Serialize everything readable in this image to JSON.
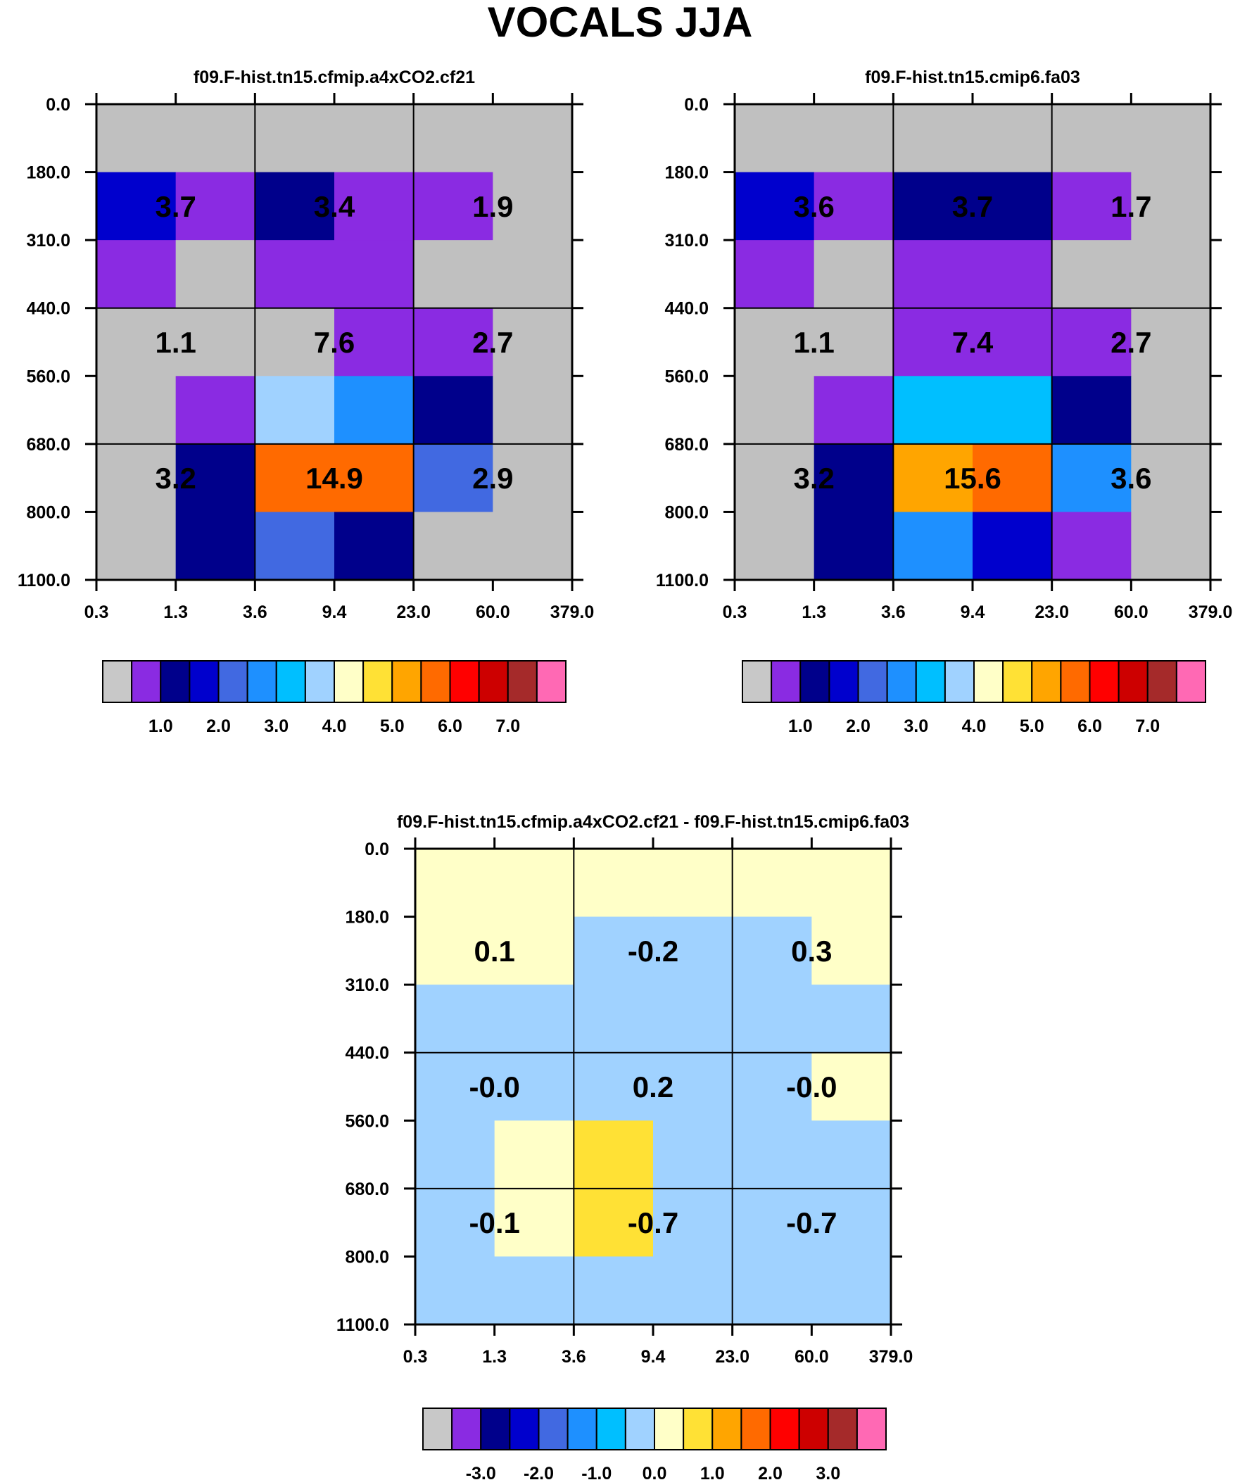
{
  "title": "VOCALS JJA",
  "chart_data": [
    {
      "type": "heatmap",
      "title": "f09.F-hist.tn15.cfmip.a4xCO2.cf21",
      "x_tick_labels": [
        "0.3",
        "1.3",
        "3.6",
        "9.4",
        "23.0",
        "60.0",
        "379.0"
      ],
      "y_tick_labels": [
        "0.0",
        "180.0",
        "310.0",
        "440.0",
        "560.0",
        "680.0",
        "800.0",
        "1100.0"
      ],
      "cell_colors": [
        [
          "#c0c0c0",
          "#c0c0c0",
          "#c0c0c0",
          "#c0c0c0",
          "#c0c0c0",
          "#c0c0c0"
        ],
        [
          "#0000cd",
          "#8a2be2",
          "#00008b",
          "#8a2be2",
          "#8a2be2",
          "#c0c0c0"
        ],
        [
          "#8a2be2",
          "#c0c0c0",
          "#8a2be2",
          "#8a2be2",
          "#c0c0c0",
          "#c0c0c0"
        ],
        [
          "#c0c0c0",
          "#c0c0c0",
          "#c0c0c0",
          "#8a2be2",
          "#8a2be2",
          "#c0c0c0"
        ],
        [
          "#c0c0c0",
          "#8a2be2",
          "#a0d2ff",
          "#1e90ff",
          "#00008b",
          "#c0c0c0"
        ],
        [
          "#c0c0c0",
          "#00008b",
          "#ff6a00",
          "#ff6a00",
          "#4169e1",
          "#c0c0c0"
        ],
        [
          "#c0c0c0",
          "#00008b",
          "#4169e1",
          "#00008b",
          "#c0c0c0",
          "#c0c0c0"
        ]
      ],
      "block_values": [
        [
          "3.7",
          "3.4",
          "1.9"
        ],
        [
          "1.1",
          "7.6",
          "2.7"
        ],
        [
          "3.2",
          "14.9",
          "2.9"
        ]
      ],
      "colorbar": {
        "colors": [
          "#c8c8c8",
          "#8a2be2",
          "#00008b",
          "#0000cd",
          "#4169e1",
          "#1e90ff",
          "#00bfff",
          "#a0d2ff",
          "#ffffc8",
          "#ffe135",
          "#ffa500",
          "#ff6a00",
          "#ff0000",
          "#cd0000",
          "#a52a2a",
          "#ff69b4"
        ],
        "labels": [
          "1.0",
          "2.0",
          "3.0",
          "4.0",
          "5.0",
          "6.0",
          "7.0"
        ]
      }
    },
    {
      "type": "heatmap",
      "title": "f09.F-hist.tn15.cmip6.fa03",
      "x_tick_labels": [
        "0.3",
        "1.3",
        "3.6",
        "9.4",
        "23.0",
        "60.0",
        "379.0"
      ],
      "y_tick_labels": [
        "0.0",
        "180.0",
        "310.0",
        "440.0",
        "560.0",
        "680.0",
        "800.0",
        "1100.0"
      ],
      "cell_colors": [
        [
          "#c0c0c0",
          "#c0c0c0",
          "#c0c0c0",
          "#c0c0c0",
          "#c0c0c0",
          "#c0c0c0"
        ],
        [
          "#0000cd",
          "#8a2be2",
          "#00008b",
          "#00008b",
          "#8a2be2",
          "#c0c0c0"
        ],
        [
          "#8a2be2",
          "#c0c0c0",
          "#8a2be2",
          "#8a2be2",
          "#c0c0c0",
          "#c0c0c0"
        ],
        [
          "#c0c0c0",
          "#c0c0c0",
          "#8a2be2",
          "#8a2be2",
          "#8a2be2",
          "#c0c0c0"
        ],
        [
          "#c0c0c0",
          "#8a2be2",
          "#00bfff",
          "#00bfff",
          "#00008b",
          "#c0c0c0"
        ],
        [
          "#c0c0c0",
          "#00008b",
          "#ffa500",
          "#ff6a00",
          "#1e90ff",
          "#c0c0c0"
        ],
        [
          "#c0c0c0",
          "#00008b",
          "#1e90ff",
          "#0000cd",
          "#8a2be2",
          "#c0c0c0"
        ]
      ],
      "block_values": [
        [
          "3.6",
          "3.7",
          "1.7"
        ],
        [
          "1.1",
          "7.4",
          "2.7"
        ],
        [
          "3.2",
          "15.6",
          "3.6"
        ]
      ],
      "colorbar": {
        "colors": [
          "#c8c8c8",
          "#8a2be2",
          "#00008b",
          "#0000cd",
          "#4169e1",
          "#1e90ff",
          "#00bfff",
          "#a0d2ff",
          "#ffffc8",
          "#ffe135",
          "#ffa500",
          "#ff6a00",
          "#ff0000",
          "#cd0000",
          "#a52a2a",
          "#ff69b4"
        ],
        "labels": [
          "1.0",
          "2.0",
          "3.0",
          "4.0",
          "5.0",
          "6.0",
          "7.0"
        ]
      }
    },
    {
      "type": "heatmap",
      "title": "f09.F-hist.tn15.cfmip.a4xCO2.cf21 - f09.F-hist.tn15.cmip6.fa03",
      "x_tick_labels": [
        "0.3",
        "1.3",
        "3.6",
        "9.4",
        "23.0",
        "60.0",
        "379.0"
      ],
      "y_tick_labels": [
        "0.0",
        "180.0",
        "310.0",
        "440.0",
        "560.0",
        "680.0",
        "800.0",
        "1100.0"
      ],
      "cell_colors": [
        [
          "#ffffc8",
          "#ffffc8",
          "#ffffc8",
          "#ffffc8",
          "#ffffc8",
          "#ffffc8"
        ],
        [
          "#ffffc8",
          "#ffffc8",
          "#a0d2ff",
          "#a0d2ff",
          "#a0d2ff",
          "#ffffc8"
        ],
        [
          "#a0d2ff",
          "#a0d2ff",
          "#a0d2ff",
          "#a0d2ff",
          "#a0d2ff",
          "#a0d2ff"
        ],
        [
          "#a0d2ff",
          "#a0d2ff",
          "#a0d2ff",
          "#a0d2ff",
          "#a0d2ff",
          "#ffffc8"
        ],
        [
          "#a0d2ff",
          "#ffffc8",
          "#ffe135",
          "#a0d2ff",
          "#a0d2ff",
          "#a0d2ff"
        ],
        [
          "#a0d2ff",
          "#ffffc8",
          "#ffe135",
          "#a0d2ff",
          "#a0d2ff",
          "#a0d2ff"
        ],
        [
          "#a0d2ff",
          "#a0d2ff",
          "#a0d2ff",
          "#a0d2ff",
          "#a0d2ff",
          "#a0d2ff"
        ]
      ],
      "block_values": [
        [
          "0.1",
          "-0.2",
          "0.3"
        ],
        [
          "-0.0",
          "0.2",
          "-0.0"
        ],
        [
          "-0.1",
          "-0.7",
          "-0.7"
        ]
      ],
      "colorbar": {
        "colors": [
          "#c8c8c8",
          "#8a2be2",
          "#00008b",
          "#0000cd",
          "#4169e1",
          "#1e90ff",
          "#00bfff",
          "#a0d2ff",
          "#ffffc8",
          "#ffe135",
          "#ffa500",
          "#ff6a00",
          "#ff0000",
          "#cd0000",
          "#a52a2a",
          "#ff69b4"
        ],
        "labels": [
          "-3.0",
          "-2.0",
          "-1.0",
          "0.0",
          "1.0",
          "2.0",
          "3.0"
        ]
      }
    }
  ]
}
